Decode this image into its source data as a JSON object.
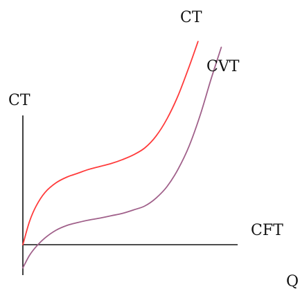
{
  "chart_data": {
    "type": "line",
    "title": "",
    "ylabel": "CT",
    "xlabel": "Q",
    "x_range": [
      0,
      10
    ],
    "y_range": [
      -1.2,
      10
    ],
    "grid": false,
    "legend": "none",
    "series": [
      {
        "name": "CT",
        "label": "CT",
        "color": "#ff3b3b",
        "x": [
          0,
          0.3,
          0.6,
          1,
          1.5,
          2,
          2.5,
          3,
          3.5,
          4,
          4.5,
          5,
          5.5,
          6,
          6.5,
          7,
          7.5,
          7.9
        ],
        "y": [
          0,
          1.2,
          2.0,
          2.7,
          3.2,
          3.5,
          3.7,
          3.9,
          4.05,
          4.2,
          4.4,
          4.65,
          5.0,
          5.6,
          6.5,
          7.7,
          9.2,
          10.5
        ]
      },
      {
        "name": "CVT",
        "label": "CVT",
        "color": "#a0608a",
        "x": [
          0,
          0.3,
          0.6,
          1,
          1.5,
          2,
          2.5,
          3,
          3.5,
          4,
          4.5,
          5,
          5.5,
          6,
          6.5,
          7,
          7.5,
          8,
          8.5,
          8.95
        ],
        "y": [
          -1.2,
          -0.55,
          -0.1,
          0.35,
          0.75,
          1.0,
          1.15,
          1.28,
          1.38,
          1.5,
          1.62,
          1.8,
          2.0,
          2.4,
          3.0,
          3.9,
          5.1,
          6.7,
          8.6,
          10.2
        ]
      },
      {
        "name": "CFT",
        "label": "CFT",
        "color": "#111111",
        "x": [
          0,
          9.5
        ],
        "y": [
          0,
          0
        ]
      }
    ]
  }
}
